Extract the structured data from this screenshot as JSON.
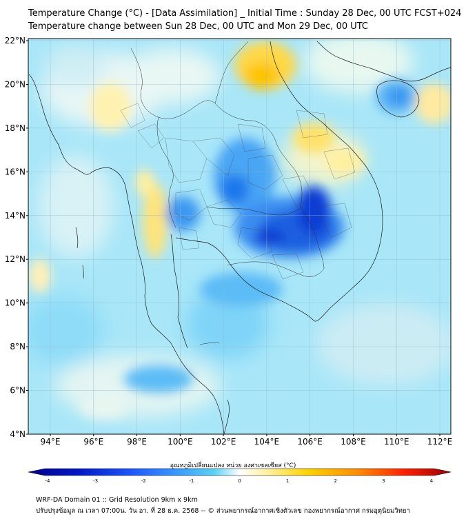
{
  "title_line1": "Temperature Change (°C) - [Data Assimilation] _ Initial Time : Sunday 28 Dec, 00 UTC FCST+024",
  "title_line2": "Temperature change between Sun 28 Dec, 00 UTC and Mon 29 Dec, 00 UTC",
  "lat_labels": [
    "22°N",
    "20°N",
    "18°N",
    "16°N",
    "14°N",
    "12°N",
    "10°N",
    "8°N",
    "6°N",
    "4°N"
  ],
  "lon_labels": [
    "94°E",
    "96°E",
    "98°E",
    "100°E",
    "102°E",
    "104°E",
    "106°E",
    "108°E",
    "110°E",
    "112°E"
  ],
  "colorbar": {
    "label": "อุณหภูมิเปลี่ยนแปลง หน่วย องศาเซลเซียส (°C)",
    "ticks": [
      "-4",
      "-3",
      "-2",
      "-1",
      "0",
      "1",
      "2",
      "3",
      "4"
    ],
    "colors": [
      "#00008b",
      "#0018c8",
      "#1e5aff",
      "#3ca6ff",
      "#58d4f4",
      "#ffffff",
      "#fff08c",
      "#ffc600",
      "#ff7a00",
      "#ff1a00",
      "#9b0000"
    ]
  },
  "footer_line1": "WRF-DA Domain 01 :: Grid Resolution 9km x 9km",
  "footer_line2": "ปรับปรุงข้อมูล ณ เวลา 07:00น. วัน อา. ที่ 28 ธ.ค. 2568 -- © ส่วนพยากรณ์อากาศเชิงตัวเลข กองพยากรณ์อากาศ กรมอุตุนิยมวิทยา"
}
